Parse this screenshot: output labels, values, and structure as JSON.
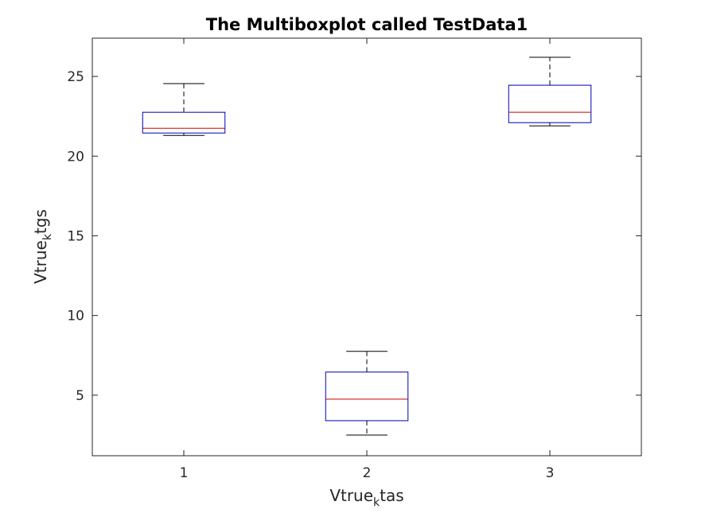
{
  "chart_data": {
    "type": "box",
    "title": "The Multiboxplot called TestData1",
    "xlabel": {
      "base": "Vtrue",
      "sub": "k",
      "rest": "tas"
    },
    "ylabel": {
      "base": "Vtrue",
      "sub": "k",
      "rest": "tgs"
    },
    "categories": [
      "1",
      "2",
      "3"
    ],
    "ylim": [
      1.2,
      27.4
    ],
    "yticks": [
      5,
      10,
      15,
      20,
      25
    ],
    "grid": false,
    "boxes": [
      {
        "category": "1",
        "whisker_low": 21.3,
        "q1": 21.45,
        "median": 21.75,
        "q3": 22.75,
        "whisker_high": 24.55
      },
      {
        "category": "2",
        "whisker_low": 2.5,
        "q1": 3.4,
        "median": 4.75,
        "q3": 6.45,
        "whisker_high": 7.75
      },
      {
        "category": "3",
        "whisker_low": 21.9,
        "q1": 22.1,
        "median": 22.75,
        "q3": 24.45,
        "whisker_high": 26.2
      }
    ],
    "colors": {
      "box": "#0000b3",
      "median": "#cc0000",
      "whisker": "#000000",
      "axes": "#262626"
    }
  }
}
